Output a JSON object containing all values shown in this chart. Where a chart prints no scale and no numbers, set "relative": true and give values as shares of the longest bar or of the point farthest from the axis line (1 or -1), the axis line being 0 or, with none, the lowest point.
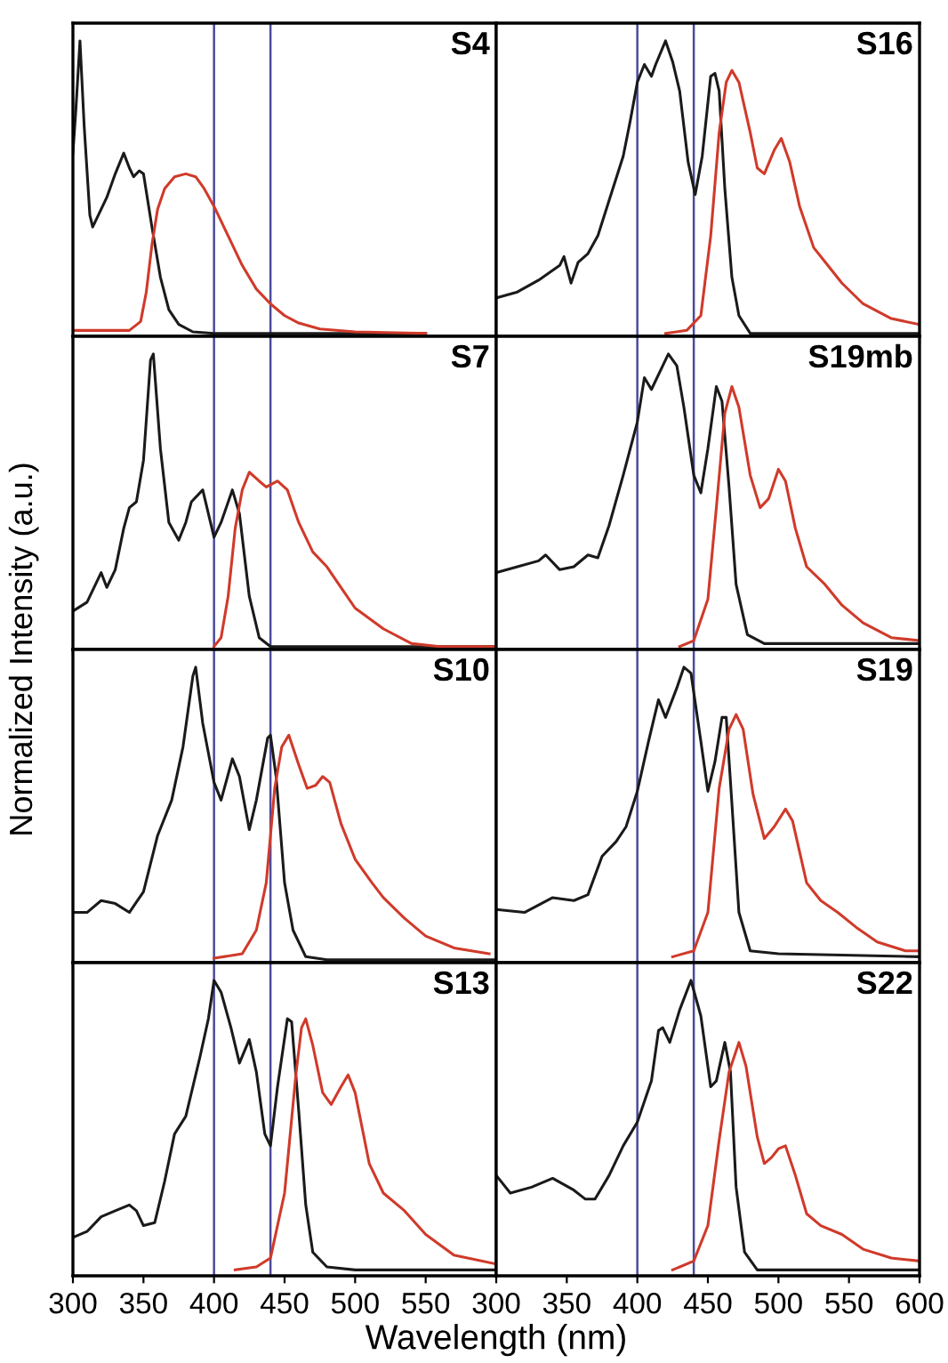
{
  "chart_data": [
    {
      "type": "line",
      "title": "S4",
      "ylabel": "Normalized Intensity (a.u.)",
      "relative": true,
      "xlim": [
        300,
        600
      ],
      "xticks": [
        300,
        350,
        400,
        450,
        500,
        550
      ],
      "tick_labels": false,
      "grid": false,
      "legend": false,
      "ref_lines": [
        {
          "axis": "x",
          "value": 400,
          "color": "#4b4b9c"
        },
        {
          "axis": "x",
          "value": 440,
          "color": "#4b4b9c"
        }
      ],
      "series": [
        {
          "color": "#1a1a1a",
          "x": [
            300,
            302,
            305,
            308,
            312,
            314,
            318,
            324,
            330,
            336,
            340,
            343,
            347,
            350,
            353,
            356,
            362,
            368,
            375,
            385,
            400,
            450,
            500,
            550
          ],
          "values": [
            0.62,
            0.76,
            1.0,
            0.71,
            0.41,
            0.37,
            0.41,
            0.47,
            0.55,
            0.62,
            0.57,
            0.54,
            0.56,
            0.55,
            0.46,
            0.37,
            0.2,
            0.09,
            0.04,
            0.015,
            0.01,
            0.01,
            0.01,
            0.01
          ]
        },
        {
          "color": "#d03a2a",
          "x": [
            300,
            340,
            348,
            352,
            356,
            360,
            365,
            372,
            380,
            387,
            393,
            400,
            410,
            420,
            430,
            440,
            450,
            460,
            475,
            500,
            550
          ],
          "values": [
            0.02,
            0.02,
            0.05,
            0.15,
            0.31,
            0.43,
            0.5,
            0.54,
            0.55,
            0.54,
            0.5,
            0.44,
            0.34,
            0.24,
            0.16,
            0.11,
            0.07,
            0.045,
            0.025,
            0.015,
            0.01
          ]
        }
      ]
    },
    {
      "type": "line",
      "title": "S16",
      "relative": true,
      "xlim": [
        300,
        600
      ],
      "xticks": [
        300,
        350,
        400,
        450,
        500,
        550,
        600
      ],
      "tick_labels": false,
      "grid": false,
      "legend": false,
      "ref_lines": [
        {
          "axis": "x",
          "value": 400,
          "color": "#4b4b9c"
        },
        {
          "axis": "x",
          "value": 440,
          "color": "#4b4b9c"
        }
      ],
      "series": [
        {
          "color": "#1a1a1a",
          "x": [
            300,
            315,
            330,
            345,
            348,
            353,
            358,
            365,
            372,
            380,
            390,
            395,
            400,
            405,
            410,
            413,
            420,
            425,
            430,
            436,
            441,
            446,
            452,
            455,
            458,
            462,
            467,
            472,
            480,
            600
          ],
          "values": [
            0.13,
            0.15,
            0.19,
            0.24,
            0.27,
            0.18,
            0.25,
            0.28,
            0.34,
            0.46,
            0.61,
            0.73,
            0.86,
            0.92,
            0.88,
            0.92,
            1.0,
            0.93,
            0.83,
            0.59,
            0.48,
            0.61,
            0.88,
            0.89,
            0.83,
            0.5,
            0.2,
            0.07,
            0.01,
            0.01
          ]
        },
        {
          "color": "#d03a2a",
          "x": [
            420,
            435,
            445,
            452,
            458,
            463,
            467,
            472,
            480,
            485,
            490,
            497,
            502,
            508,
            515,
            525,
            535,
            545,
            560,
            580,
            600
          ],
          "values": [
            0.01,
            0.02,
            0.07,
            0.34,
            0.69,
            0.86,
            0.9,
            0.86,
            0.69,
            0.57,
            0.55,
            0.63,
            0.67,
            0.59,
            0.44,
            0.3,
            0.24,
            0.18,
            0.11,
            0.06,
            0.04
          ]
        }
      ]
    },
    {
      "type": "line",
      "title": "S7",
      "relative": true,
      "xlim": [
        300,
        600
      ],
      "xticks": [
        300,
        350,
        400,
        450,
        500,
        550
      ],
      "tick_labels": false,
      "grid": false,
      "legend": false,
      "ref_lines": [
        {
          "axis": "x",
          "value": 400,
          "color": "#4b4b9c"
        },
        {
          "axis": "x",
          "value": 440,
          "color": "#4b4b9c"
        }
      ],
      "series": [
        {
          "color": "#1a1a1a",
          "x": [
            300,
            310,
            320,
            324,
            330,
            336,
            340,
            345,
            350,
            355,
            357,
            362,
            368,
            375,
            380,
            384,
            392,
            400,
            405,
            413,
            418,
            425,
            432,
            440,
            600
          ],
          "values": [
            0.13,
            0.16,
            0.26,
            0.21,
            0.27,
            0.41,
            0.48,
            0.5,
            0.64,
            0.98,
            1.0,
            0.68,
            0.43,
            0.37,
            0.43,
            0.5,
            0.54,
            0.38,
            0.43,
            0.54,
            0.46,
            0.18,
            0.04,
            0.01,
            0.01
          ]
        },
        {
          "color": "#d03a2a",
          "x": [
            400,
            405,
            410,
            415,
            420,
            425,
            432,
            437,
            445,
            452,
            460,
            470,
            480,
            490,
            500,
            520,
            540,
            560,
            600
          ],
          "values": [
            0.01,
            0.04,
            0.18,
            0.41,
            0.54,
            0.6,
            0.57,
            0.55,
            0.57,
            0.54,
            0.43,
            0.33,
            0.28,
            0.21,
            0.14,
            0.07,
            0.02,
            0.01,
            0.01
          ]
        }
      ]
    },
    {
      "type": "line",
      "title": "S19mb",
      "relative": true,
      "xlim": [
        300,
        600
      ],
      "xticks": [
        300,
        350,
        400,
        450,
        500,
        550,
        600
      ],
      "tick_labels": false,
      "grid": false,
      "legend": false,
      "ref_lines": [
        {
          "axis": "x",
          "value": 400,
          "color": "#4b4b9c"
        },
        {
          "axis": "x",
          "value": 440,
          "color": "#4b4b9c"
        }
      ],
      "series": [
        {
          "color": "#1a1a1a",
          "x": [
            300,
            315,
            330,
            335,
            345,
            355,
            365,
            372,
            380,
            390,
            400,
            405,
            410,
            418,
            422,
            428,
            433,
            440,
            445,
            450,
            456,
            460,
            465,
            470,
            478,
            490,
            600
          ],
          "values": [
            0.26,
            0.28,
            0.3,
            0.32,
            0.27,
            0.28,
            0.32,
            0.31,
            0.42,
            0.59,
            0.77,
            0.92,
            0.88,
            0.96,
            1.0,
            0.96,
            0.82,
            0.59,
            0.53,
            0.68,
            0.89,
            0.84,
            0.55,
            0.22,
            0.05,
            0.02,
            0.02
          ]
        },
        {
          "color": "#d03a2a",
          "x": [
            430,
            440,
            450,
            456,
            462,
            467,
            472,
            480,
            487,
            493,
            500,
            505,
            512,
            520,
            533,
            545,
            560,
            580,
            600
          ],
          "values": [
            0.01,
            0.03,
            0.17,
            0.48,
            0.8,
            0.89,
            0.82,
            0.59,
            0.48,
            0.51,
            0.61,
            0.57,
            0.41,
            0.28,
            0.22,
            0.15,
            0.09,
            0.04,
            0.03
          ]
        }
      ]
    },
    {
      "type": "line",
      "title": "S10",
      "relative": true,
      "xlim": [
        300,
        600
      ],
      "xticks": [
        300,
        350,
        400,
        450,
        500,
        550
      ],
      "tick_labels": false,
      "grid": false,
      "legend": false,
      "ref_lines": [
        {
          "axis": "x",
          "value": 400,
          "color": "#4b4b9c"
        },
        {
          "axis": "x",
          "value": 440,
          "color": "#4b4b9c"
        }
      ],
      "series": [
        {
          "color": "#1a1a1a",
          "x": [
            300,
            310,
            320,
            330,
            340,
            350,
            360,
            370,
            378,
            385,
            387,
            392,
            400,
            405,
            413,
            418,
            425,
            430,
            438,
            440,
            444,
            450,
            456,
            465,
            480,
            600
          ],
          "values": [
            0.17,
            0.17,
            0.21,
            0.2,
            0.17,
            0.24,
            0.43,
            0.55,
            0.73,
            0.97,
            1.0,
            0.81,
            0.61,
            0.55,
            0.69,
            0.63,
            0.45,
            0.55,
            0.76,
            0.77,
            0.63,
            0.27,
            0.11,
            0.02,
            0.01,
            0.01
          ]
        },
        {
          "color": "#d03a2a",
          "x": [
            400,
            420,
            430,
            437,
            443,
            448,
            453,
            460,
            466,
            472,
            477,
            482,
            490,
            500,
            512,
            520,
            535,
            550,
            570,
            595
          ],
          "values": [
            0.015,
            0.03,
            0.11,
            0.27,
            0.59,
            0.73,
            0.77,
            0.67,
            0.59,
            0.6,
            0.63,
            0.61,
            0.47,
            0.35,
            0.27,
            0.22,
            0.15,
            0.09,
            0.05,
            0.03
          ]
        }
      ]
    },
    {
      "type": "line",
      "title": "S19",
      "relative": true,
      "xlim": [
        300,
        600
      ],
      "xticks": [
        300,
        350,
        400,
        450,
        500,
        550,
        600
      ],
      "tick_labels": false,
      "grid": false,
      "legend": false,
      "ref_lines": [
        {
          "axis": "x",
          "value": 400,
          "color": "#4b4b9c"
        },
        {
          "axis": "x",
          "value": 440,
          "color": "#4b4b9c"
        }
      ],
      "series": [
        {
          "color": "#1a1a1a",
          "x": [
            300,
            320,
            340,
            355,
            365,
            375,
            385,
            392,
            400,
            408,
            415,
            420,
            428,
            433,
            438,
            445,
            450,
            455,
            460,
            463,
            467,
            472,
            480,
            500,
            600
          ],
          "values": [
            0.18,
            0.17,
            0.22,
            0.21,
            0.23,
            0.36,
            0.41,
            0.46,
            0.58,
            0.75,
            0.89,
            0.83,
            0.93,
            1.0,
            0.98,
            0.75,
            0.58,
            0.68,
            0.83,
            0.83,
            0.54,
            0.17,
            0.04,
            0.03,
            0.02
          ]
        },
        {
          "color": "#d03a2a",
          "x": [
            425,
            440,
            450,
            458,
            465,
            470,
            475,
            482,
            490,
            497,
            505,
            510,
            520,
            530,
            542,
            555,
            570,
            590,
            600
          ],
          "values": [
            0.02,
            0.04,
            0.17,
            0.59,
            0.79,
            0.84,
            0.79,
            0.57,
            0.42,
            0.46,
            0.52,
            0.48,
            0.27,
            0.21,
            0.17,
            0.12,
            0.07,
            0.04,
            0.04
          ]
        }
      ]
    },
    {
      "type": "line",
      "title": "S13",
      "xlabel": "Wavelength (nm)",
      "relative": true,
      "xlim": [
        300,
        600
      ],
      "xticks": [
        300,
        350,
        400,
        450,
        500,
        550
      ],
      "tick_labels": "x",
      "grid": false,
      "legend": false,
      "ref_lines": [
        {
          "axis": "x",
          "value": 400,
          "color": "#4b4b9c"
        },
        {
          "axis": "x",
          "value": 440,
          "color": "#4b4b9c"
        }
      ],
      "series": [
        {
          "color": "#1a1a1a",
          "x": [
            300,
            310,
            320,
            330,
            340,
            345,
            350,
            358,
            365,
            372,
            380,
            390,
            396,
            400,
            405,
            412,
            418,
            425,
            430,
            436,
            440,
            445,
            452,
            455,
            460,
            465,
            470,
            480,
            500,
            600
          ],
          "values": [
            0.13,
            0.15,
            0.2,
            0.22,
            0.24,
            0.22,
            0.17,
            0.18,
            0.32,
            0.48,
            0.54,
            0.74,
            0.87,
            1.0,
            0.96,
            0.84,
            0.72,
            0.8,
            0.69,
            0.48,
            0.44,
            0.64,
            0.87,
            0.86,
            0.56,
            0.24,
            0.08,
            0.03,
            0.02,
            0.02
          ]
        },
        {
          "color": "#d03a2a",
          "x": [
            415,
            430,
            440,
            450,
            458,
            462,
            465,
            470,
            477,
            483,
            490,
            495,
            500,
            510,
            520,
            535,
            550,
            570,
            600
          ],
          "values": [
            0.02,
            0.03,
            0.06,
            0.28,
            0.68,
            0.84,
            0.87,
            0.78,
            0.62,
            0.58,
            0.64,
            0.68,
            0.62,
            0.38,
            0.28,
            0.22,
            0.14,
            0.07,
            0.04
          ]
        }
      ]
    },
    {
      "type": "line",
      "title": "S22",
      "relative": true,
      "xlim": [
        300,
        600
      ],
      "xticks": [
        300,
        350,
        400,
        450,
        500,
        550,
        600
      ],
      "tick_labels": "x",
      "grid": false,
      "legend": false,
      "ref_lines": [
        {
          "axis": "x",
          "value": 400,
          "color": "#4b4b9c"
        },
        {
          "axis": "x",
          "value": 440,
          "color": "#4b4b9c"
        }
      ],
      "series": [
        {
          "color": "#1a1a1a",
          "x": [
            300,
            310,
            325,
            340,
            355,
            363,
            370,
            380,
            390,
            400,
            410,
            415,
            418,
            423,
            430,
            438,
            445,
            452,
            456,
            462,
            466,
            470,
            476,
            485,
            600
          ],
          "values": [
            0.34,
            0.28,
            0.3,
            0.33,
            0.29,
            0.26,
            0.26,
            0.34,
            0.44,
            0.52,
            0.66,
            0.83,
            0.84,
            0.79,
            0.9,
            1.0,
            0.88,
            0.64,
            0.66,
            0.79,
            0.69,
            0.3,
            0.08,
            0.02,
            0.02
          ]
        },
        {
          "color": "#d03a2a",
          "x": [
            425,
            440,
            450,
            458,
            465,
            472,
            477,
            485,
            490,
            495,
            500,
            505,
            512,
            520,
            530,
            545,
            560,
            580,
            600
          ],
          "values": [
            0.02,
            0.05,
            0.17,
            0.46,
            0.69,
            0.79,
            0.71,
            0.47,
            0.38,
            0.4,
            0.43,
            0.44,
            0.34,
            0.21,
            0.17,
            0.14,
            0.09,
            0.06,
            0.05
          ]
        }
      ]
    }
  ]
}
